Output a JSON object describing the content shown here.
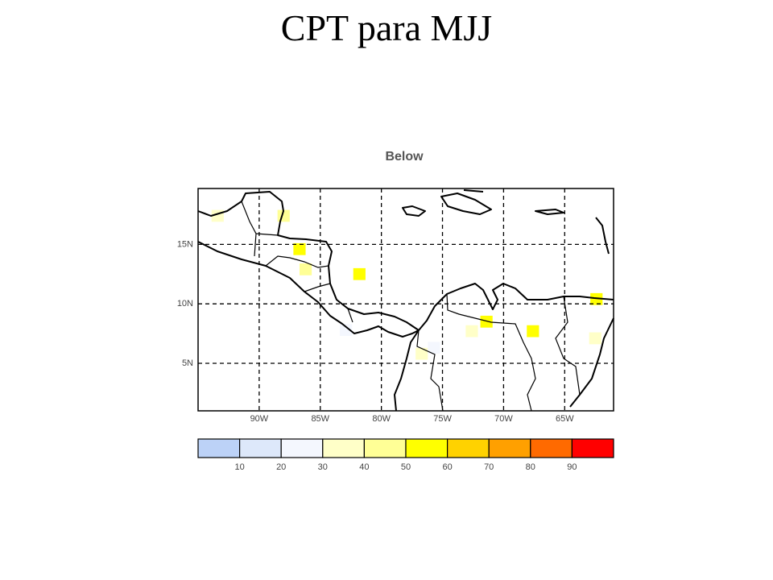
{
  "header": {
    "title": "CPT para MJJ"
  },
  "map": {
    "title": "Below",
    "lonlim": [
      -95,
      -61
    ],
    "latlim": [
      1,
      19.7
    ],
    "lonticks": [
      {
        "value": -90,
        "label": "90W"
      },
      {
        "value": -85,
        "label": "85W"
      },
      {
        "value": -80,
        "label": "80W"
      },
      {
        "value": -75,
        "label": "75W"
      },
      {
        "value": -70,
        "label": "70W"
      },
      {
        "value": -65,
        "label": "65W"
      }
    ],
    "latticks": [
      {
        "value": 15,
        "label": "15N"
      },
      {
        "value": 10,
        "label": "10N"
      },
      {
        "value": 5,
        "label": "5N"
      }
    ],
    "cells": [
      {
        "lon": -86.7,
        "lat": 14.6,
        "value": 55
      },
      {
        "lon": -81.8,
        "lat": 12.5,
        "value": 55
      },
      {
        "lon": -71.4,
        "lat": 8.5,
        "value": 55
      },
      {
        "lon": -67.6,
        "lat": 7.7,
        "value": 55
      },
      {
        "lon": -62.4,
        "lat": 10.4,
        "value": 55
      },
      {
        "lon": -86.2,
        "lat": 12.9,
        "value": 45
      },
      {
        "lon": -88,
        "lat": 17.4,
        "value": 45
      },
      {
        "lon": -76.7,
        "lat": 5.8,
        "value": 35
      },
      {
        "lon": -75.7,
        "lat": 6.3,
        "value": 25
      },
      {
        "lon": -82.9,
        "lat": 7.8,
        "value": 25
      },
      {
        "lon": -93.4,
        "lat": 17.4,
        "value": 35
      },
      {
        "lon": -62.5,
        "lat": 7.1,
        "value": 35
      },
      {
        "lon": -72.6,
        "lat": 7.7,
        "value": 35
      }
    ]
  },
  "colorbar": {
    "ticks": [
      10,
      20,
      30,
      40,
      50,
      60,
      70,
      80,
      90
    ],
    "colors": [
      "#bcd2f7",
      "#dde8fa",
      "#f4f7fe",
      "#ffffc8",
      "#ffff96",
      "#ffff00",
      "#ffd200",
      "#ffa000",
      "#ff6a00",
      "#ff0000"
    ]
  }
}
